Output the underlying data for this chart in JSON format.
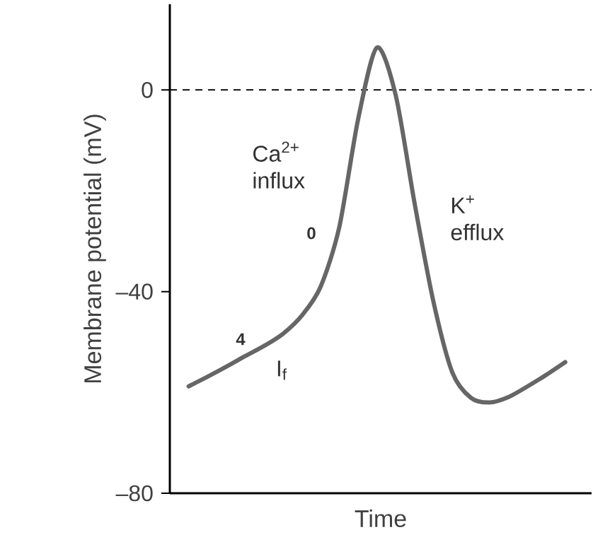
{
  "chart_data": {
    "type": "line",
    "ylabel": "Membrane potential (mV)",
    "xlabel": "Time",
    "categories": [
      null,
      null,
      null,
      null,
      null,
      null,
      null,
      null,
      null,
      null,
      null,
      null,
      null,
      null,
      null,
      null,
      null,
      null,
      null,
      null,
      null
    ],
    "series": [
      {
        "color": "#666666",
        "values": [
          -58.8,
          -56.9,
          -54.9,
          -52.8,
          -50.8,
          -48.4,
          -44.8,
          -39.1,
          -27.2,
          -5.8,
          8.4,
          -1.1,
          -22.5,
          -42.0,
          -56.0,
          -61.1,
          -62.0,
          -60.9,
          -58.8,
          -56.5,
          -54.0
        ]
      }
    ],
    "ylim": [
      -80,
      17
    ],
    "yticks": [
      0,
      {
        "value": -40,
        "label": "–40"
      },
      {
        "value": -80,
        "label": "–80"
      }
    ],
    "tick_labels": "y",
    "ref_lines": [
      {
        "axis": "y",
        "value": 0,
        "line_style": "dashed",
        "color": "#000000"
      }
    ],
    "annotations": [
      "Ca$^{2+}$ influx",
      "K$^{+}$ efflux",
      "**0**",
      "**4**",
      "I$_{f}$"
    ]
  }
}
